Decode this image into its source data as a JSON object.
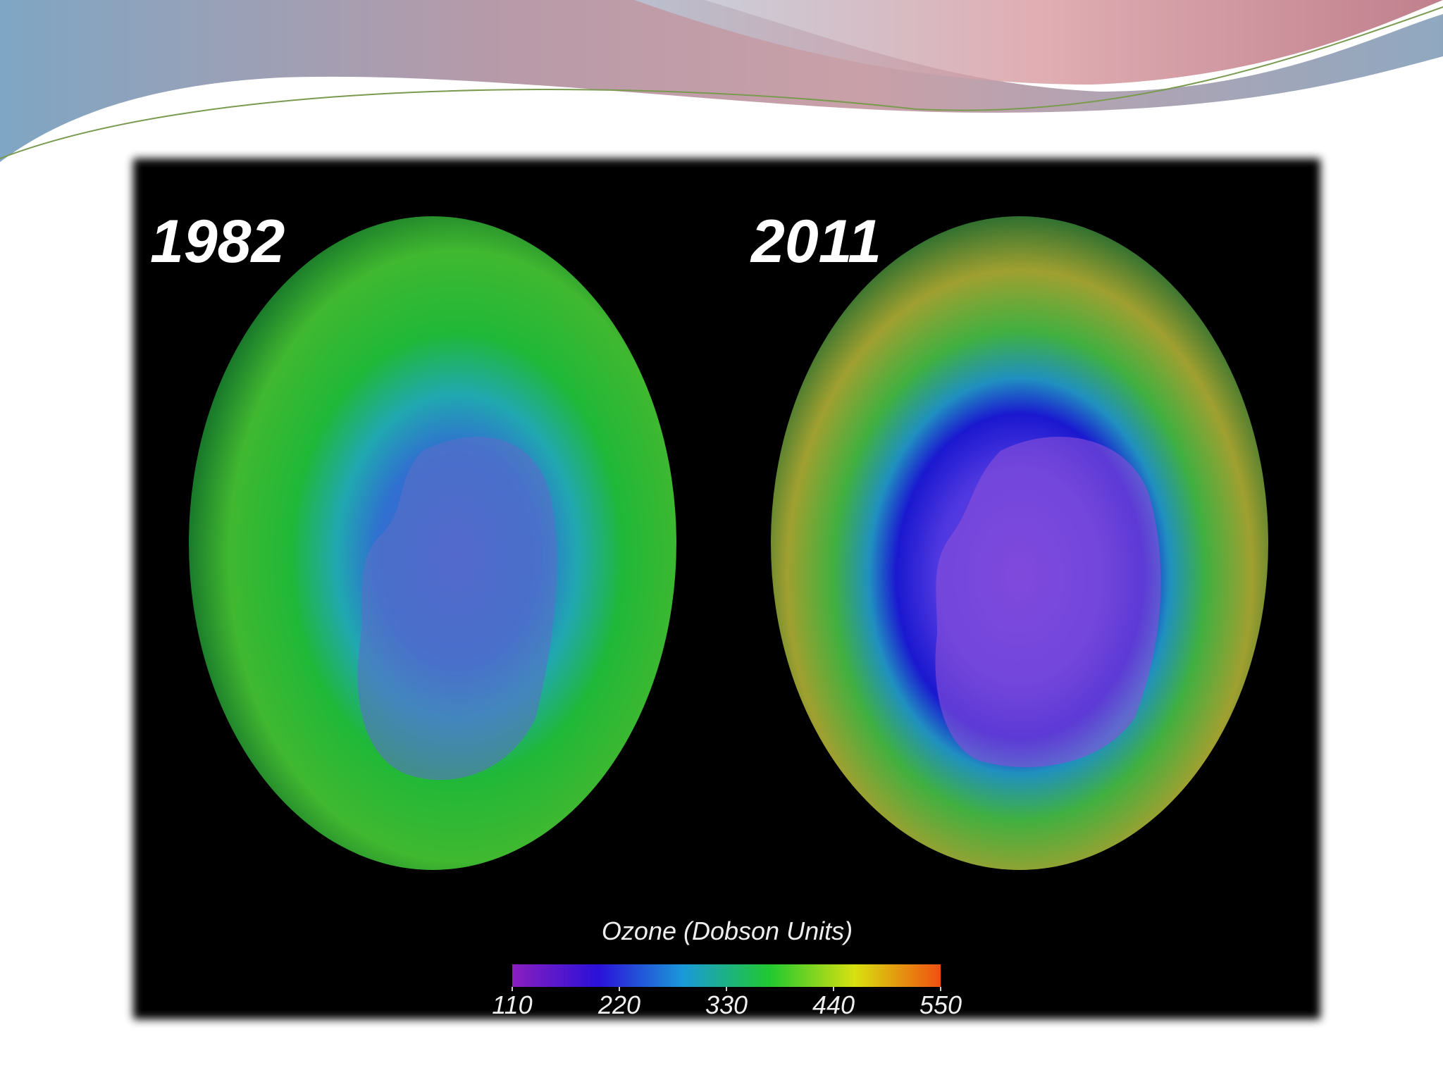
{
  "panels": [
    {
      "label": "1982"
    },
    {
      "label": "2011"
    }
  ],
  "colorbar": {
    "title": "Ozone (Dobson Units)",
    "range": [
      110,
      550
    ],
    "ticks": [
      110,
      220,
      330,
      440,
      550
    ],
    "colors": [
      "#8a1fc0",
      "#2a10d8",
      "#1a9ad8",
      "#20c830",
      "#d8e010",
      "#f05010"
    ]
  }
}
